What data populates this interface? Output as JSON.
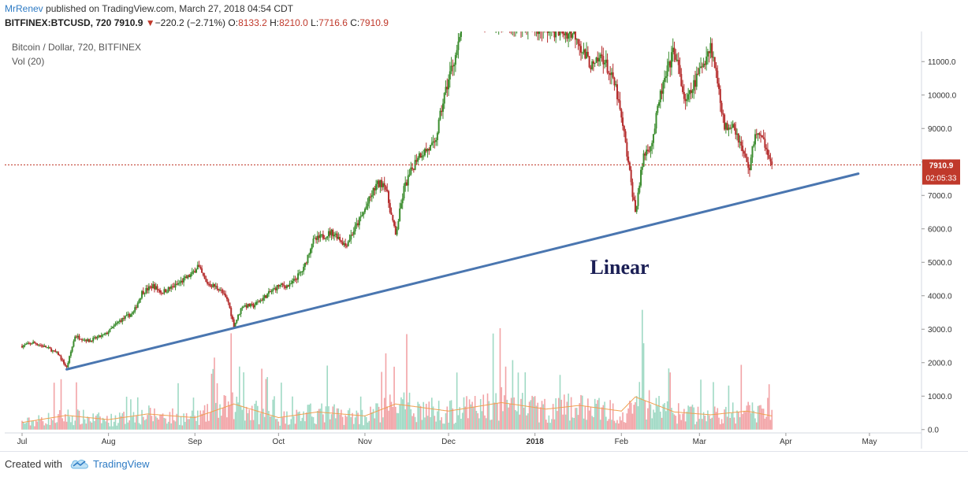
{
  "header": {
    "author": "MrRenev",
    "published": "published on TradingView.com, March 27, 2018 04:54 CDT",
    "symbol": "BITFINEX:BTCUSD, 720",
    "last": "7910.9",
    "change_arrow": "▼",
    "change": "−220.2 (−2.71%)",
    "o_label": "O:",
    "o_value": "8133.2",
    "h_label": "H:",
    "h_value": "8210.0",
    "l_label": "L:",
    "l_value": "7716.6",
    "c_label": "C:",
    "c_value": "7910.9"
  },
  "chart_legend": {
    "title": "Bitcoin / Dollar, 720, BITFINEX",
    "indicator": "Vol (20)"
  },
  "colors": {
    "up": "#26a69a",
    "up_body": "#3c8d2f",
    "down": "#b52d2d",
    "vol_up": "#9fd9c4",
    "vol_down": "#f2a3a6",
    "vol_ma": "#f0a050",
    "trendline": "#4a76b0",
    "price_line": "#c0392b",
    "price_tag": "#c0392b",
    "annotation": "#1b1f55",
    "link": "#2e7bc4"
  },
  "annotation": "Linear",
  "price_tag": {
    "price": "7910.9",
    "countdown": "02:05:33"
  },
  "footer": {
    "created_with": "Created with",
    "brand": "TradingView",
    "logo_icon": "tradingview-cloud-icon"
  },
  "chart_data": {
    "type": "candlestick",
    "title": "Bitcoin / Dollar, 720, BITFINEX",
    "x_labels": [
      "Jul",
      "Aug",
      "Sep",
      "Oct",
      "Nov",
      "Dec",
      "2018",
      "Feb",
      "Mar",
      "Apr",
      "May"
    ],
    "y_ticks": [
      "0.0",
      "1000.0",
      "2000.0",
      "3000.0",
      "4000.0",
      "5000.0",
      "6000.0",
      "7000.0",
      "8000.0",
      "9000.0",
      "10000.0",
      "11000.0"
    ],
    "y_range": [
      -100,
      11900
    ],
    "last_price": 7910.9,
    "trendline": {
      "start": [
        "2017-07-17",
        1800
      ],
      "end": [
        "2018-04-27",
        7650
      ],
      "label": "Linear"
    },
    "price_path": [
      [
        "2017-07-01",
        2500
      ],
      [
        "2017-07-05",
        2600
      ],
      [
        "2017-07-10",
        2450
      ],
      [
        "2017-07-14",
        2250
      ],
      [
        "2017-07-17",
        1850
      ],
      [
        "2017-07-20",
        2800
      ],
      [
        "2017-07-25",
        2650
      ],
      [
        "2017-07-31",
        2850
      ],
      [
        "2017-08-05",
        3250
      ],
      [
        "2017-08-10",
        3500
      ],
      [
        "2017-08-13",
        4100
      ],
      [
        "2017-08-17",
        4300
      ],
      [
        "2017-08-20",
        4100
      ],
      [
        "2017-08-25",
        4300
      ],
      [
        "2017-08-31",
        4650
      ],
      [
        "2017-09-02",
        4900
      ],
      [
        "2017-09-05",
        4400
      ],
      [
        "2017-09-10",
        4200
      ],
      [
        "2017-09-13",
        3800
      ],
      [
        "2017-09-15",
        3100
      ],
      [
        "2017-09-18",
        3700
      ],
      [
        "2017-09-22",
        3700
      ],
      [
        "2017-09-25",
        3900
      ],
      [
        "2017-10-01",
        4300
      ],
      [
        "2017-10-05",
        4300
      ],
      [
        "2017-10-10",
        4800
      ],
      [
        "2017-10-13",
        5600
      ],
      [
        "2017-10-15",
        5700
      ],
      [
        "2017-10-20",
        5900
      ],
      [
        "2017-10-22",
        5800
      ],
      [
        "2017-10-25",
        5500
      ],
      [
        "2017-10-31",
        6400
      ],
      [
        "2017-11-05",
        7300
      ],
      [
        "2017-11-08",
        7400
      ],
      [
        "2017-11-10",
        6600
      ],
      [
        "2017-11-12",
        5800
      ],
      [
        "2017-11-15",
        7200
      ],
      [
        "2017-11-20",
        8200
      ],
      [
        "2017-11-26",
        8500
      ],
      [
        "2017-11-29",
        9800
      ],
      [
        "2017-12-02",
        10800
      ],
      [
        "2017-12-05",
        11600
      ],
      [
        "2017-12-06",
        12500
      ],
      [
        "2018-01-16",
        11800
      ],
      [
        "2018-01-18",
        11300
      ],
      [
        "2018-01-22",
        10800
      ],
      [
        "2018-01-25",
        11200
      ],
      [
        "2018-01-30",
        10200
      ],
      [
        "2018-02-02",
        8800
      ],
      [
        "2018-02-06",
        6500
      ],
      [
        "2018-02-09",
        8200
      ],
      [
        "2018-02-12",
        8600
      ],
      [
        "2018-02-15",
        10000
      ],
      [
        "2018-02-20",
        11400
      ],
      [
        "2018-02-24",
        9700
      ],
      [
        "2018-02-28",
        10500
      ],
      [
        "2018-03-05",
        11500
      ],
      [
        "2018-03-08",
        10200
      ],
      [
        "2018-03-10",
        9000
      ],
      [
        "2018-03-13",
        9200
      ],
      [
        "2018-03-17",
        8200
      ],
      [
        "2018-03-19",
        7800
      ],
      [
        "2018-03-21",
        8900
      ],
      [
        "2018-03-25",
        8500
      ],
      [
        "2018-03-27",
        7910.9
      ]
    ],
    "volume_path": [
      [
        "2017-07-01",
        250
      ],
      [
        "2017-07-17",
        500
      ],
      [
        "2017-08-01",
        350
      ],
      [
        "2017-08-15",
        550
      ],
      [
        "2017-09-01",
        420
      ],
      [
        "2017-09-15",
        900
      ],
      [
        "2017-10-01",
        420
      ],
      [
        "2017-10-15",
        620
      ],
      [
        "2017-11-01",
        480
      ],
      [
        "2017-11-12",
        900
      ],
      [
        "2017-12-01",
        650
      ],
      [
        "2017-12-20",
        950
      ],
      [
        "2018-01-05",
        720
      ],
      [
        "2018-01-17",
        850
      ],
      [
        "2018-02-01",
        650
      ],
      [
        "2018-02-06",
        1150
      ],
      [
        "2018-02-20",
        620
      ],
      [
        "2018-03-05",
        520
      ],
      [
        "2018-03-18",
        650
      ],
      [
        "2018-03-27",
        480
      ]
    ]
  }
}
